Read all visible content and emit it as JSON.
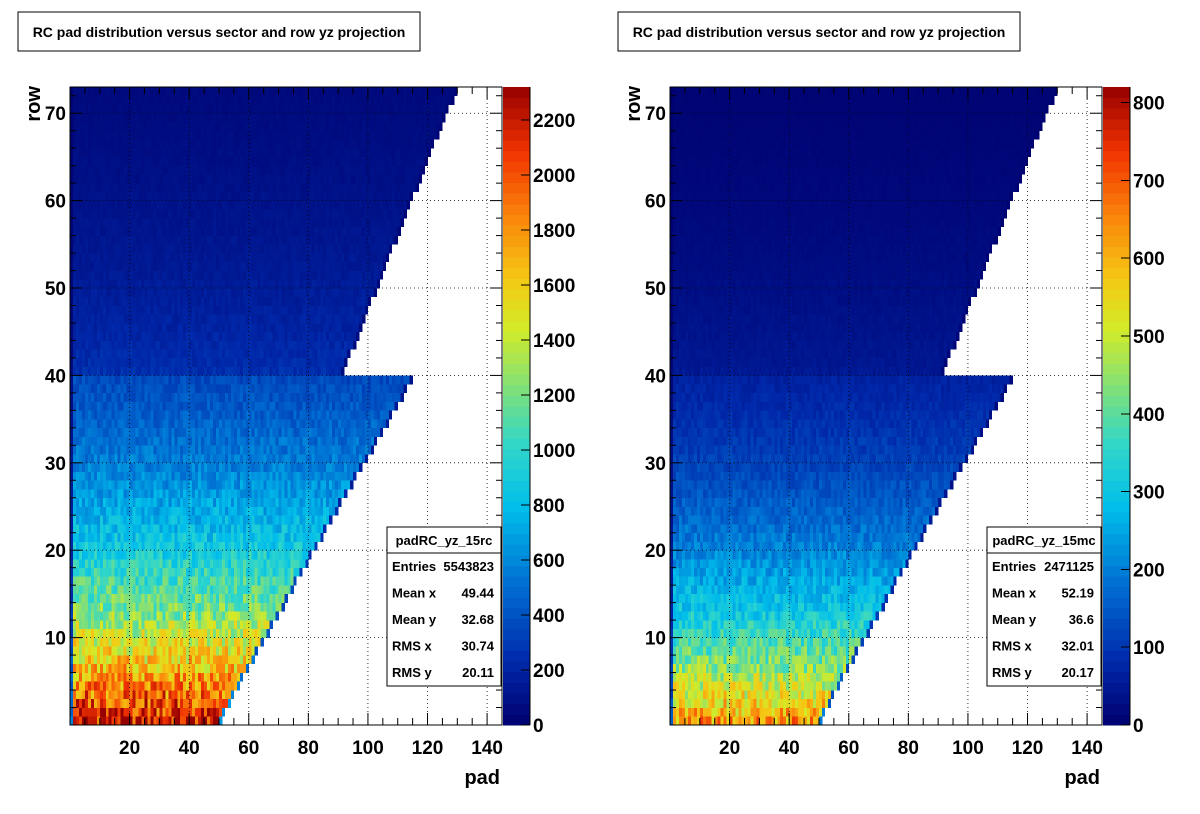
{
  "chart_data": [
    {
      "type": "heatmap",
      "title": "RC pad distribution versus sector and row yz projection",
      "xlabel": "pad",
      "ylabel": "row",
      "xlim": [
        0,
        145
      ],
      "ylim": [
        0,
        73
      ],
      "x_ticks": [
        "20",
        "40",
        "60",
        "80",
        "100",
        "120",
        "140"
      ],
      "y_ticks": [
        "10",
        "20",
        "30",
        "40",
        "50",
        "60",
        "70"
      ],
      "colorbar": {
        "min": 0,
        "max": 2320,
        "ticks": [
          "0",
          "200",
          "400",
          "600",
          "800",
          "1000",
          "1200",
          "1400",
          "1600",
          "1800",
          "2000",
          "2200"
        ]
      },
      "grid": true,
      "model": {
        "row_base": 2300,
        "row_scale": 4.9,
        "outer_scale": 0.72,
        "max_pad": [
          51,
          52,
          54,
          55,
          57,
          58,
          60,
          62,
          63,
          65,
          67,
          68,
          70,
          72,
          73,
          75,
          76,
          78,
          80,
          81,
          83,
          85,
          86,
          88,
          90,
          91,
          93,
          95,
          96,
          98,
          100,
          102,
          103,
          105,
          107,
          108,
          110,
          112,
          113,
          115,
          92,
          93,
          94,
          96,
          97,
          98,
          99,
          100,
          101,
          103,
          104,
          105,
          106,
          107,
          108,
          110,
          111,
          112,
          113,
          114,
          115,
          117,
          118,
          119,
          120,
          121,
          122,
          124,
          125,
          126,
          127,
          129,
          130
        ]
      },
      "stats": {
        "name": "padRC_yz_15rc",
        "rows": [
          {
            "label": "Entries",
            "value": "5543823"
          },
          {
            "label": "Mean x",
            "value": "49.44"
          },
          {
            "label": "Mean y",
            "value": "32.68"
          },
          {
            "label": "RMS x",
            "value": "30.74"
          },
          {
            "label": "RMS y",
            "value": "20.11"
          }
        ]
      }
    },
    {
      "type": "heatmap",
      "title": "RC pad distribution versus sector and row yz projection",
      "xlabel": "pad",
      "ylabel": "row",
      "xlim": [
        0,
        145
      ],
      "ylim": [
        0,
        73
      ],
      "x_ticks": [
        "20",
        "40",
        "60",
        "80",
        "100",
        "120",
        "140"
      ],
      "y_ticks": [
        "10",
        "20",
        "30",
        "40",
        "50",
        "60",
        "70"
      ],
      "colorbar": {
        "min": 0,
        "max": 820,
        "ticks": [
          "0",
          "100",
          "200",
          "300",
          "400",
          "500",
          "600",
          "700",
          "800"
        ]
      },
      "grid": true,
      "model": {
        "row_base": 660,
        "row_scale": 4.0,
        "outer_scale": 0.75,
        "max_pad": [
          51,
          52,
          54,
          55,
          57,
          58,
          60,
          62,
          63,
          65,
          67,
          68,
          70,
          72,
          73,
          75,
          76,
          78,
          80,
          81,
          83,
          85,
          86,
          88,
          90,
          91,
          93,
          95,
          96,
          98,
          100,
          102,
          103,
          105,
          107,
          108,
          110,
          112,
          113,
          115,
          92,
          93,
          94,
          96,
          97,
          98,
          99,
          100,
          101,
          103,
          104,
          105,
          106,
          107,
          108,
          110,
          111,
          112,
          113,
          114,
          115,
          117,
          118,
          119,
          120,
          121,
          122,
          124,
          125,
          126,
          127,
          129,
          130
        ]
      },
      "stats": {
        "name": "padRC_yz_15mc",
        "rows": [
          {
            "label": "Entries",
            "value": "2471125"
          },
          {
            "label": "Mean x",
            "value": "52.19"
          },
          {
            "label": "Mean y",
            "value": "36.6"
          },
          {
            "label": "RMS x",
            "value": "32.01"
          },
          {
            "label": "RMS y",
            "value": "20.17"
          }
        ]
      }
    }
  ]
}
